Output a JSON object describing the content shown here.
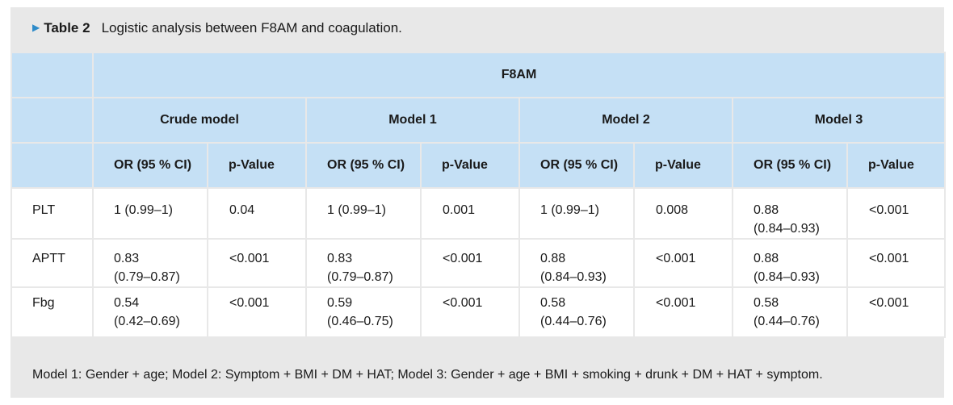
{
  "caption": {
    "label": "Table 2",
    "title": "Logistic analysis between F8AM and coagulation."
  },
  "header": {
    "group": "F8AM",
    "models": [
      "Crude model",
      "Model 1",
      "Model 2",
      "Model 3"
    ],
    "or_label": "OR (95 % CI)",
    "p_label": "p-Value"
  },
  "rows": [
    {
      "name": "PLT",
      "cells": [
        {
          "or": "1 (0.99–1)",
          "or2": "",
          "p": "0.04"
        },
        {
          "or": "1 (0.99–1)",
          "or2": "",
          "p": "0.001"
        },
        {
          "or": "1 (0.99–1)",
          "or2": "",
          "p": "0.008"
        },
        {
          "or": "0.88",
          "or2": "(0.84–0.93)",
          "p": "<0.001"
        }
      ]
    },
    {
      "name": "APTT",
      "cells": [
        {
          "or": "0.83",
          "or2": "(0.79–0.87)",
          "p": "<0.001"
        },
        {
          "or": "0.83",
          "or2": "(0.79–0.87)",
          "p": "<0.001"
        },
        {
          "or": "0.88",
          "or2": "(0.84–0.93)",
          "p": "<0.001"
        },
        {
          "or": "0.88",
          "or2": "(0.84–0.93)",
          "p": "<0.001"
        }
      ]
    },
    {
      "name": "Fbg",
      "cells": [
        {
          "or": "0.54",
          "or2": "(0.42–0.69)",
          "p": "<0.001"
        },
        {
          "or": "0.59",
          "or2": "(0.46–0.75)",
          "p": "<0.001"
        },
        {
          "or": "0.58",
          "or2": "(0.44–0.76)",
          "p": "<0.001"
        },
        {
          "or": "0.58",
          "or2": "(0.44–0.76)",
          "p": "<0.001"
        }
      ]
    }
  ],
  "footnote": "Model 1: Gender + age; Model 2: Symptom + BMI + DM + HAT; Model 3: Gender + age + BMI + smoking + drunk + DM + HAT + symptom.",
  "colors": {
    "header_bg": "#c5e0f5",
    "frame_bg": "#e8e8e8",
    "arrow": "#2e8bc9"
  }
}
